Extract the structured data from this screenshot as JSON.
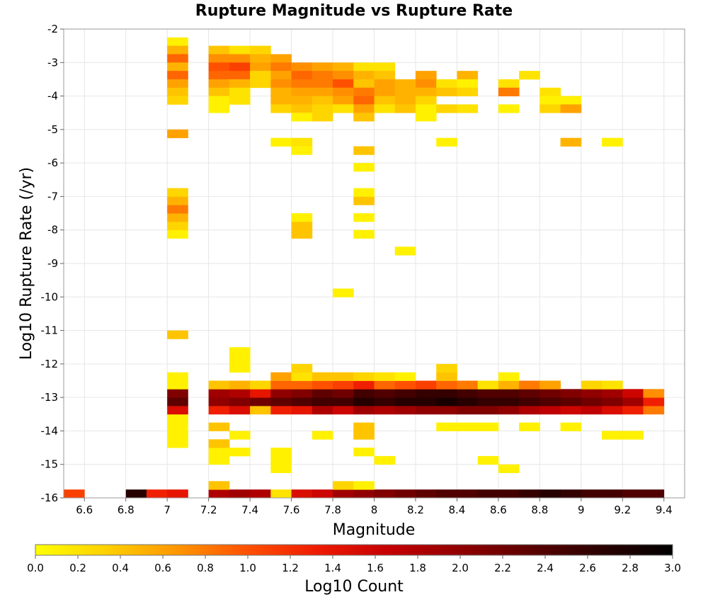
{
  "chart_data": {
    "type": "heatmap",
    "title": "Rupture Magnitude vs Rupture Rate",
    "xlabel": "Magnitude",
    "ylabel": "Log10 Rupture Rate (/yr)",
    "xlim": [
      6.5,
      9.5
    ],
    "ylim": [
      -16,
      -2
    ],
    "x_ticks": [
      "6.6",
      "6.8",
      "7",
      "7.2",
      "7.4",
      "7.6",
      "7.8",
      "8",
      "8.2",
      "8.4",
      "8.6",
      "8.8",
      "9",
      "9.2",
      "9.4"
    ],
    "y_ticks": [
      "-2",
      "-3",
      "-4",
      "-5",
      "-6",
      "-7",
      "-8",
      "-9",
      "-10",
      "-11",
      "-12",
      "-13",
      "-14",
      "-15",
      "-16"
    ],
    "grid": true,
    "bin_width_magnitude": 0.1,
    "bin_height_log_rate": 0.25,
    "colorbar": {
      "label": "Log10 Count",
      "range": [
        0,
        3
      ],
      "ticks": [
        "0.0",
        "0.2",
        "0.4",
        "0.6",
        "0.8",
        "1.0",
        "1.2",
        "1.4",
        "1.6",
        "1.8",
        "2.0",
        "2.2",
        "2.4",
        "2.6",
        "2.8",
        "3.0"
      ],
      "colors": [
        "#ffff00",
        "#ffd000",
        "#ff9600",
        "#ff5000",
        "#ee1a00",
        "#c40000",
        "#900000",
        "#5a0000",
        "#2a0000",
        "#000000"
      ]
    },
    "cells": [
      [
        6.55,
        -16,
        1.1
      ],
      [
        6.85,
        -16,
        2.7
      ],
      [
        6.95,
        -16,
        1.3
      ],
      [
        7.05,
        -16,
        1.4
      ],
      [
        7.25,
        -16,
        1.8
      ],
      [
        7.35,
        -16,
        1.9
      ],
      [
        7.45,
        -16,
        1.8
      ],
      [
        7.55,
        -16,
        0.2
      ],
      [
        7.65,
        -16,
        1.5
      ],
      [
        7.75,
        -16,
        1.6
      ],
      [
        7.85,
        -16,
        1.9
      ],
      [
        7.95,
        -16,
        2.0
      ],
      [
        8.05,
        -16,
        2.1
      ],
      [
        8.15,
        -16,
        2.2
      ],
      [
        8.25,
        -16,
        2.3
      ],
      [
        8.35,
        -16,
        2.4
      ],
      [
        8.45,
        -16,
        2.4
      ],
      [
        8.55,
        -16,
        2.5
      ],
      [
        8.65,
        -16,
        2.5
      ],
      [
        8.75,
        -16,
        2.6
      ],
      [
        8.85,
        -16,
        2.7
      ],
      [
        8.95,
        -16,
        2.6
      ],
      [
        9.05,
        -16,
        2.5
      ],
      [
        9.15,
        -16,
        2.5
      ],
      [
        9.25,
        -16,
        2.4
      ],
      [
        9.35,
        -16,
        2.4
      ],
      [
        7.85,
        -15.75,
        0.3
      ],
      [
        7.95,
        -15.75,
        0.1
      ],
      [
        7.25,
        -15.75,
        0.4
      ],
      [
        8.65,
        -15.25,
        0.1
      ],
      [
        8.55,
        -15,
        0.1
      ],
      [
        8.05,
        -15,
        0.1
      ],
      [
        7.95,
        -14.75,
        0.1
      ],
      [
        7.55,
        -14.75,
        0.1
      ],
      [
        7.55,
        -15,
        0.1
      ],
      [
        7.55,
        -15.25,
        0.1
      ],
      [
        7.35,
        -14.75,
        0.1
      ],
      [
        7.25,
        -14.75,
        0.1
      ],
      [
        7.25,
        -15,
        0.1
      ],
      [
        7.25,
        -14.5,
        0.4
      ],
      [
        7.05,
        -13.75,
        0.1
      ],
      [
        7.05,
        -14,
        0.1
      ],
      [
        7.05,
        -14.25,
        0.1
      ],
      [
        7.05,
        -14.5,
        0.1
      ],
      [
        7.25,
        -14,
        0.4
      ],
      [
        7.35,
        -14.25,
        0.1
      ],
      [
        7.75,
        -14.25,
        0.1
      ],
      [
        7.95,
        -14,
        0.4
      ],
      [
        7.95,
        -14.25,
        0.4
      ],
      [
        8.35,
        -14,
        0.1
      ],
      [
        8.45,
        -14,
        0.1
      ],
      [
        8.55,
        -14,
        0.1
      ],
      [
        8.75,
        -14,
        0.1
      ],
      [
        8.95,
        -14,
        0.1
      ],
      [
        9.15,
        -14.25,
        0.1
      ],
      [
        9.25,
        -14.25,
        0.1
      ],
      [
        7.05,
        -13.5,
        1.5
      ],
      [
        7.25,
        -13.5,
        1.3
      ],
      [
        7.35,
        -13.5,
        1.5
      ],
      [
        7.45,
        -13.5,
        0.4
      ],
      [
        7.55,
        -13.5,
        1.3
      ],
      [
        7.65,
        -13.5,
        1.4
      ],
      [
        7.75,
        -13.5,
        1.8
      ],
      [
        7.85,
        -13.5,
        1.6
      ],
      [
        7.95,
        -13.5,
        1.9
      ],
      [
        8.05,
        -13.5,
        1.8
      ],
      [
        8.15,
        -13.5,
        1.9
      ],
      [
        8.25,
        -13.5,
        2.0
      ],
      [
        8.35,
        -13.5,
        2.0
      ],
      [
        8.45,
        -13.5,
        2.1
      ],
      [
        8.55,
        -13.5,
        2.1
      ],
      [
        8.65,
        -13.5,
        2.0
      ],
      [
        8.75,
        -13.5,
        1.8
      ],
      [
        8.85,
        -13.5,
        1.7
      ],
      [
        8.95,
        -13.5,
        1.6
      ],
      [
        9.05,
        -13.5,
        1.7
      ],
      [
        9.15,
        -13.5,
        1.5
      ],
      [
        9.25,
        -13.5,
        1.3
      ],
      [
        9.35,
        -13.5,
        0.8
      ],
      [
        7.05,
        -13.25,
        2.3
      ],
      [
        7.25,
        -13.25,
        2.0
      ],
      [
        7.35,
        -13.25,
        2.1
      ],
      [
        7.45,
        -13.25,
        2.2
      ],
      [
        7.55,
        -13.25,
        2.3
      ],
      [
        7.65,
        -13.25,
        2.4
      ],
      [
        7.75,
        -13.25,
        2.5
      ],
      [
        7.85,
        -13.25,
        2.5
      ],
      [
        7.95,
        -13.25,
        2.7
      ],
      [
        8.05,
        -13.25,
        2.6
      ],
      [
        8.15,
        -13.25,
        2.7
      ],
      [
        8.25,
        -13.25,
        2.7
      ],
      [
        8.35,
        -13.25,
        2.8
      ],
      [
        8.45,
        -13.25,
        2.7
      ],
      [
        8.55,
        -13.25,
        2.6
      ],
      [
        8.65,
        -13.25,
        2.6
      ],
      [
        8.75,
        -13.25,
        2.5
      ],
      [
        8.85,
        -13.25,
        2.4
      ],
      [
        8.95,
        -13.25,
        2.3
      ],
      [
        9.05,
        -13.25,
        2.2
      ],
      [
        9.15,
        -13.25,
        2.1
      ],
      [
        9.25,
        -13.25,
        1.9
      ],
      [
        9.35,
        -13.25,
        1.3
      ],
      [
        7.05,
        -13,
        2.1
      ],
      [
        7.25,
        -13,
        1.9
      ],
      [
        7.35,
        -13,
        1.8
      ],
      [
        7.45,
        -13,
        1.4
      ],
      [
        7.55,
        -13,
        2.0
      ],
      [
        7.65,
        -13,
        2.1
      ],
      [
        7.75,
        -13,
        2.3
      ],
      [
        7.85,
        -13,
        2.2
      ],
      [
        7.95,
        -13,
        2.5
      ],
      [
        8.05,
        -13,
        2.4
      ],
      [
        8.15,
        -13,
        2.5
      ],
      [
        8.25,
        -13,
        2.6
      ],
      [
        8.35,
        -13,
        2.6
      ],
      [
        8.45,
        -13,
        2.5
      ],
      [
        8.55,
        -13,
        2.4
      ],
      [
        8.65,
        -13,
        2.4
      ],
      [
        8.75,
        -13,
        2.3
      ],
      [
        8.85,
        -13,
        2.2
      ],
      [
        8.95,
        -13,
        2.1
      ],
      [
        9.05,
        -13,
        2.0
      ],
      [
        9.15,
        -13,
        1.9
      ],
      [
        9.25,
        -13,
        1.6
      ],
      [
        9.35,
        -13,
        0.7
      ],
      [
        7.05,
        -12.75,
        0.1
      ],
      [
        7.25,
        -12.75,
        0.4
      ],
      [
        7.35,
        -12.75,
        0.5
      ],
      [
        7.45,
        -12.75,
        0.3
      ],
      [
        7.55,
        -12.75,
        0.9
      ],
      [
        7.65,
        -12.75,
        0.9
      ],
      [
        7.75,
        -12.75,
        1.0
      ],
      [
        7.85,
        -12.75,
        1.1
      ],
      [
        7.95,
        -12.75,
        1.3
      ],
      [
        8.05,
        -12.75,
        0.9
      ],
      [
        8.15,
        -12.75,
        1.0
      ],
      [
        8.25,
        -12.75,
        1.1
      ],
      [
        8.35,
        -12.75,
        0.9
      ],
      [
        8.45,
        -12.75,
        0.8
      ],
      [
        8.55,
        -12.75,
        0.2
      ],
      [
        8.65,
        -12.75,
        0.5
      ],
      [
        8.75,
        -12.75,
        0.8
      ],
      [
        8.85,
        -12.75,
        0.6
      ],
      [
        9.05,
        -12.75,
        0.3
      ],
      [
        9.15,
        -12.75,
        0.2
      ],
      [
        7.05,
        -12.5,
        0.1
      ],
      [
        7.55,
        -12.5,
        0.6
      ],
      [
        7.65,
        -12.5,
        0.2
      ],
      [
        7.75,
        -12.5,
        0.4
      ],
      [
        7.85,
        -12.5,
        0.4
      ],
      [
        7.95,
        -12.5,
        0.3
      ],
      [
        8.05,
        -12.5,
        0.2
      ],
      [
        8.15,
        -12.5,
        0.1
      ],
      [
        8.35,
        -12.5,
        0.4
      ],
      [
        8.65,
        -12.5,
        0.1
      ],
      [
        7.65,
        -12.25,
        0.3
      ],
      [
        8.35,
        -12.25,
        0.3
      ],
      [
        7.35,
        -12.25,
        0.1
      ],
      [
        7.35,
        -12,
        0.1
      ],
      [
        7.35,
        -11.75,
        0.1
      ],
      [
        7.05,
        -11.25,
        0.4
      ],
      [
        7.85,
        -10,
        0.1
      ],
      [
        8.15,
        -8.75,
        0.1
      ],
      [
        7.95,
        -8.25,
        0.1
      ],
      [
        7.65,
        -8.25,
        0.4
      ],
      [
        7.65,
        -8,
        0.4
      ],
      [
        7.65,
        -7.75,
        0.1
      ],
      [
        7.95,
        -7.75,
        0.1
      ],
      [
        7.95,
        -7.25,
        0.4
      ],
      [
        7.95,
        -7,
        0.1
      ],
      [
        7.95,
        -6.25,
        0.1
      ],
      [
        7.95,
        -5.75,
        0.4
      ],
      [
        7.05,
        -8.25,
        0.1
      ],
      [
        7.05,
        -8,
        0.3
      ],
      [
        7.05,
        -7.75,
        0.5
      ],
      [
        7.05,
        -7.5,
        0.8
      ],
      [
        7.05,
        -7.25,
        0.5
      ],
      [
        7.05,
        -7,
        0.3
      ],
      [
        7.05,
        -5.25,
        0.6
      ],
      [
        7.55,
        -5.5,
        0.1
      ],
      [
        7.65,
        -5.5,
        0.2
      ],
      [
        7.65,
        -5.75,
        0.1
      ],
      [
        8.35,
        -5.5,
        0.1
      ],
      [
        8.95,
        -5.5,
        0.5
      ],
      [
        9.15,
        -5.5,
        0.1
      ],
      [
        7.05,
        -2.5,
        0.1
      ],
      [
        7.05,
        -2.75,
        0.5
      ],
      [
        7.05,
        -3,
        0.9
      ],
      [
        7.05,
        -3.25,
        0.5
      ],
      [
        7.05,
        -3.5,
        0.9
      ],
      [
        7.05,
        -3.75,
        0.6
      ],
      [
        7.05,
        -4,
        0.4
      ],
      [
        7.05,
        -4.25,
        0.3
      ],
      [
        7.25,
        -2.75,
        0.4
      ],
      [
        7.35,
        -2.75,
        0.2
      ],
      [
        7.45,
        -2.75,
        0.3
      ],
      [
        7.25,
        -3,
        0.7
      ],
      [
        7.35,
        -3,
        0.7
      ],
      [
        7.45,
        -3,
        0.5
      ],
      [
        7.55,
        -3,
        0.6
      ],
      [
        7.25,
        -3.25,
        1.0
      ],
      [
        7.35,
        -3.25,
        1.1
      ],
      [
        7.45,
        -3.25,
        0.6
      ],
      [
        7.55,
        -3.25,
        0.8
      ],
      [
        7.65,
        -3.25,
        0.7
      ],
      [
        7.75,
        -3.25,
        0.6
      ],
      [
        7.85,
        -3.25,
        0.5
      ],
      [
        7.95,
        -3.25,
        0.2
      ],
      [
        8.05,
        -3.25,
        0.2
      ],
      [
        7.25,
        -3.5,
        0.9
      ],
      [
        7.35,
        -3.5,
        0.9
      ],
      [
        7.45,
        -3.5,
        0.3
      ],
      [
        7.55,
        -3.5,
        0.6
      ],
      [
        7.65,
        -3.5,
        0.9
      ],
      [
        7.75,
        -3.5,
        0.8
      ],
      [
        7.85,
        -3.5,
        0.7
      ],
      [
        7.95,
        -3.5,
        0.5
      ],
      [
        8.05,
        -3.5,
        0.4
      ],
      [
        8.25,
        -3.5,
        0.6
      ],
      [
        8.45,
        -3.5,
        0.5
      ],
      [
        8.75,
        -3.5,
        0.2
      ],
      [
        7.25,
        -3.75,
        0.6
      ],
      [
        7.35,
        -3.75,
        0.5
      ],
      [
        7.45,
        -3.75,
        0.3
      ],
      [
        7.55,
        -3.75,
        0.7
      ],
      [
        7.65,
        -3.75,
        0.8
      ],
      [
        7.75,
        -3.75,
        0.8
      ],
      [
        7.85,
        -3.75,
        1.0
      ],
      [
        7.95,
        -3.75,
        0.4
      ],
      [
        8.05,
        -3.75,
        0.6
      ],
      [
        8.15,
        -3.75,
        0.5
      ],
      [
        8.25,
        -3.75,
        0.7
      ],
      [
        8.35,
        -3.75,
        0.2
      ],
      [
        8.45,
        -3.75,
        0.1
      ],
      [
        8.65,
        -3.75,
        0.2
      ],
      [
        7.25,
        -4,
        0.4
      ],
      [
        7.35,
        -4,
        0.2
      ],
      [
        7.55,
        -4,
        0.5
      ],
      [
        7.65,
        -4,
        0.6
      ],
      [
        7.75,
        -4,
        0.6
      ],
      [
        7.85,
        -4,
        0.7
      ],
      [
        7.95,
        -4,
        0.8
      ],
      [
        8.05,
        -4,
        0.6
      ],
      [
        8.15,
        -4,
        0.5
      ],
      [
        8.25,
        -4,
        0.5
      ],
      [
        8.35,
        -4,
        0.4
      ],
      [
        8.45,
        -4,
        0.3
      ],
      [
        8.65,
        -4,
        0.8
      ],
      [
        8.85,
        -4,
        0.2
      ],
      [
        7.25,
        -4.25,
        0.1
      ],
      [
        7.35,
        -4.25,
        0.2
      ],
      [
        7.55,
        -4.25,
        0.5
      ],
      [
        7.65,
        -4.25,
        0.5
      ],
      [
        7.75,
        -4.25,
        0.4
      ],
      [
        7.85,
        -4.25,
        0.6
      ],
      [
        7.95,
        -4.25,
        0.9
      ],
      [
        8.05,
        -4.25,
        0.4
      ],
      [
        8.15,
        -4.25,
        0.5
      ],
      [
        8.25,
        -4.25,
        0.3
      ],
      [
        8.85,
        -4.25,
        0.1
      ],
      [
        8.95,
        -4.25,
        0.1
      ],
      [
        7.25,
        -4.5,
        0.1
      ],
      [
        7.55,
        -4.5,
        0.3
      ],
      [
        7.65,
        -4.5,
        0.4
      ],
      [
        7.75,
        -4.5,
        0.3
      ],
      [
        7.85,
        -4.5,
        0.2
      ],
      [
        7.95,
        -4.5,
        0.6
      ],
      [
        8.05,
        -4.5,
        0.2
      ],
      [
        8.15,
        -4.5,
        0.4
      ],
      [
        8.25,
        -4.5,
        0.1
      ],
      [
        8.35,
        -4.5,
        0.3
      ],
      [
        8.45,
        -4.5,
        0.2
      ],
      [
        8.65,
        -4.5,
        0.1
      ],
      [
        8.85,
        -4.5,
        0.3
      ],
      [
        8.95,
        -4.5,
        0.6
      ],
      [
        7.65,
        -4.75,
        0.1
      ],
      [
        7.75,
        -4.75,
        0.3
      ],
      [
        7.95,
        -4.75,
        0.4
      ],
      [
        8.25,
        -4.75,
        0.1
      ]
    ]
  }
}
